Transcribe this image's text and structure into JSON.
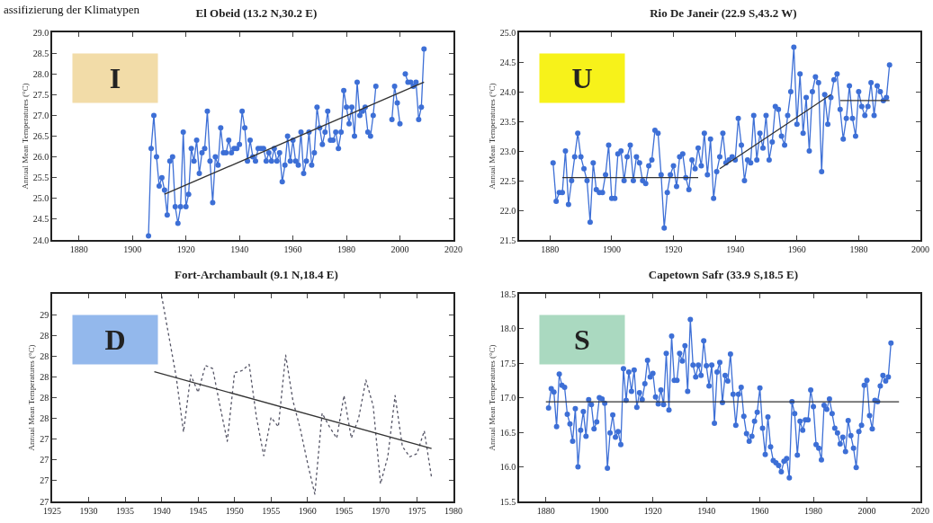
{
  "chart_data": [
    {
      "type": "line",
      "title": "El Obeid (13.2 N,30.2 E)",
      "ylabel": "Annual Mean Temperatures (°C)",
      "annotations": [
        "I",
        "assifizierung der Klimatypen"
      ],
      "marker": "circle",
      "line_style": "solid",
      "xlim": [
        1870,
        2020
      ],
      "xticks": [
        1880,
        1900,
        1920,
        1940,
        1960,
        1980,
        2000,
        2020
      ],
      "ylim": [
        24,
        29
      ],
      "yticks": [
        {
          "value": 24,
          "label": "24.0"
        },
        {
          "value": 24.5,
          "label": "24.5"
        },
        {
          "value": 25,
          "label": "25.0"
        },
        {
          "value": 25.5,
          "label": "25.5"
        },
        {
          "value": 26,
          "label": "26.0"
        },
        {
          "value": 26.5,
          "label": "26.5"
        },
        {
          "value": 27,
          "label": "27.0"
        },
        {
          "value": 27.5,
          "label": "27.5"
        },
        {
          "value": 28,
          "label": "28.0"
        },
        {
          "value": 28.5,
          "label": "28.5"
        },
        {
          "value": 29,
          "label": "29.0"
        }
      ],
      "series": [
        {
          "color": "#3d6fd6",
          "x": [
            1906,
            1907,
            1908,
            1909,
            1910,
            1911,
            1912,
            1913,
            1914,
            1915,
            1916,
            1917,
            1918,
            1919,
            1920,
            1921,
            1922,
            1923,
            1924,
            1925,
            1926,
            1927,
            1928,
            1929,
            1930,
            1931,
            1932,
            1933,
            1934,
            1935,
            1936,
            1937,
            1938,
            1939,
            1940,
            1941,
            1942,
            1943,
            1944,
            1945,
            1946,
            1947,
            1948,
            1949,
            1950,
            1951,
            1952,
            1953,
            1954,
            1955,
            1956,
            1957,
            1958,
            1959,
            1960,
            1961,
            1962,
            1963,
            1964,
            1965,
            1966,
            1967,
            1968,
            1969,
            1970,
            1971,
            1972,
            1973,
            1974,
            1975,
            1976,
            1977,
            1978,
            1979,
            1980,
            1981,
            1982,
            1983,
            1984,
            1985,
            1986,
            1987,
            1988,
            1989,
            1990,
            1991,
            1992,
            1993,
            1994,
            1995,
            1996,
            1997,
            1998,
            1999,
            2000,
            2001,
            2002,
            2003,
            2004,
            2005,
            2006,
            2007,
            2008,
            2009
          ],
          "values": [
            24.1,
            26.2,
            27.0,
            26.0,
            25.3,
            25.5,
            25.2,
            24.6,
            25.9,
            26.0,
            24.8,
            24.4,
            24.8,
            26.6,
            24.8,
            25.1,
            26.2,
            25.9,
            26.4,
            25.6,
            26.1,
            26.2,
            27.1,
            25.9,
            24.9,
            26.0,
            25.8,
            26.7,
            26.1,
            26.1,
            26.4,
            26.1,
            26.2,
            26.2,
            26.3,
            27.1,
            26.7,
            25.9,
            26.4,
            26.0,
            25.9,
            26.2,
            26.2,
            26.2,
            25.9,
            26.1,
            25.9,
            26.2,
            25.9,
            26.1,
            25.4,
            25.8,
            26.5,
            25.9,
            26.4,
            25.9,
            25.8,
            26.6,
            25.6,
            25.9,
            26.6,
            25.8,
            26.1,
            27.2,
            26.7,
            26.3,
            26.6,
            27.1,
            26.4,
            26.4,
            26.6,
            26.2,
            26.6,
            27.6,
            27.2,
            26.8,
            27.2,
            26.5,
            27.8,
            27.0,
            27.1,
            27.2,
            26.6,
            26.5,
            27.0,
            27.7,
            null,
            null,
            null,
            null,
            null,
            26.9,
            27.7,
            27.3,
            26.8,
            null,
            28.0,
            27.8,
            27.8,
            27.7,
            27.8,
            26.9,
            27.2,
            28.6
          ]
        },
        {
          "type": "line",
          "color": "#333333",
          "marker": "none",
          "x": [
            1912,
            2009
          ],
          "values": [
            25.1,
            27.8
          ]
        }
      ]
    },
    {
      "type": "line",
      "title": "Rio De Janeir (22.9 S,43.2 W)",
      "ylabel": "Annual Mean Temperatures (°C)",
      "annotations": [
        "U"
      ],
      "marker": "circle",
      "line_style": "solid",
      "xlim": [
        1870,
        2000
      ],
      "xticks": [
        1880,
        1900,
        1920,
        1940,
        1960,
        1980,
        2000
      ],
      "ylim": [
        21.5,
        25
      ],
      "yticks": [
        {
          "value": 21.5,
          "label": "21.5"
        },
        {
          "value": 22,
          "label": "22.0"
        },
        {
          "value": 22.5,
          "label": "22.5"
        },
        {
          "value": 23,
          "label": "23.0"
        },
        {
          "value": 23.5,
          "label": "23.5"
        },
        {
          "value": 24,
          "label": "24.0"
        },
        {
          "value": 24.5,
          "label": "24.5"
        },
        {
          "value": 25,
          "label": "25.0"
        }
      ],
      "series": [
        {
          "color": "#3d6fd6",
          "x": [
            1881,
            1882,
            1883,
            1884,
            1885,
            1886,
            1887,
            1888,
            1889,
            1890,
            1891,
            1892,
            1893,
            1894,
            1895,
            1896,
            1897,
            1898,
            1899,
            1900,
            1901,
            1902,
            1903,
            1904,
            1905,
            1906,
            1907,
            1908,
            1909,
            1910,
            1911,
            1912,
            1913,
            1914,
            1915,
            1916,
            1917,
            1918,
            1919,
            1920,
            1921,
            1922,
            1923,
            1924,
            1925,
            1926,
            1927,
            1928,
            1929,
            1930,
            1931,
            1932,
            1933,
            1934,
            1935,
            1936,
            1937,
            1938,
            1939,
            1940,
            1941,
            1942,
            1943,
            1944,
            1945,
            1946,
            1947,
            1948,
            1949,
            1950,
            1951,
            1952,
            1953,
            1954,
            1955,
            1956,
            1957,
            1958,
            1959,
            1960,
            1961,
            1962,
            1963,
            1964,
            1965,
            1966,
            1967,
            1968,
            1969,
            1970,
            1971,
            1972,
            1973,
            1974,
            1975,
            1976,
            1977,
            1978,
            1979,
            1980,
            1981,
            1982,
            1983,
            1984,
            1985,
            1986,
            1987,
            1988,
            1989,
            1990
          ],
          "values": [
            22.8,
            22.15,
            22.3,
            22.3,
            23.0,
            22.1,
            22.5,
            22.9,
            23.3,
            22.9,
            22.7,
            22.5,
            21.8,
            22.8,
            22.35,
            22.3,
            22.3,
            22.6,
            23.1,
            22.2,
            22.2,
            22.95,
            23.0,
            22.5,
            22.9,
            23.1,
            22.5,
            22.9,
            22.8,
            22.5,
            22.45,
            22.75,
            22.85,
            23.35,
            23.3,
            22.6,
            21.7,
            22.3,
            22.6,
            22.75,
            22.4,
            22.9,
            22.95,
            22.55,
            22.35,
            22.85,
            22.7,
            23.05,
            22.75,
            23.3,
            22.6,
            23.2,
            22.2,
            22.65,
            22.9,
            23.3,
            22.8,
            22.85,
            22.9,
            22.85,
            23.55,
            23.1,
            22.5,
            22.85,
            22.8,
            23.6,
            22.85,
            23.3,
            23.05,
            23.6,
            22.85,
            23.15,
            23.75,
            23.7,
            23.25,
            23.1,
            23.6,
            24.0,
            24.75,
            23.45,
            24.3,
            23.3,
            23.9,
            23.0,
            24.0,
            24.25,
            24.15,
            22.65,
            23.95,
            23.45,
            23.9,
            24.2,
            24.3,
            23.7,
            23.2,
            23.55,
            24.1,
            23.55,
            23.25,
            24.0,
            23.75,
            23.6,
            23.75,
            24.15,
            23.6,
            24.1,
            24.0,
            23.85,
            23.9,
            24.45
          ]
        },
        {
          "type": "line",
          "color": "#333333",
          "marker": "none",
          "x": [
            1884,
            1928
          ],
          "values": [
            22.55,
            22.55
          ]
        },
        {
          "type": "line",
          "color": "#333333",
          "marker": "none",
          "x": [
            1935,
            1971
          ],
          "values": [
            22.7,
            23.95
          ]
        },
        {
          "type": "line",
          "color": "#333333",
          "marker": "none",
          "x": [
            1974,
            1990
          ],
          "values": [
            23.85,
            23.85
          ]
        }
      ]
    },
    {
      "type": "line",
      "title": "Fort-Archambault (9.1 N,18.4 E)",
      "ylabel": "Annual Mean Temperatures (°C)",
      "annotations": [
        "D"
      ],
      "marker": "none",
      "xlim": [
        1925,
        1980
      ],
      "xticks": [
        1925,
        1930,
        1935,
        1940,
        1945,
        1950,
        1955,
        1960,
        1965,
        1970,
        1975,
        1980
      ],
      "ylim": [
        26.8,
        28.8
      ],
      "yticks": [
        {
          "value": 26.8,
          "label": "27"
        },
        {
          "value": 27.0,
          "label": "27"
        },
        {
          "value": 27.2,
          "label": "27"
        },
        {
          "value": 27.4,
          "label": "27"
        },
        {
          "value": 27.6,
          "label": "28"
        },
        {
          "value": 27.8,
          "label": "28"
        },
        {
          "value": 28.0,
          "label": "28"
        },
        {
          "value": 28.2,
          "label": "28"
        },
        {
          "value": 28.4,
          "label": "28"
        },
        {
          "value": 28.6,
          "label": "29"
        }
      ],
      "series": [
        {
          "color": "#555566",
          "line_style": "dotted",
          "x": [
            1940,
            1942,
            1943,
            1944,
            1945,
            1946,
            1947,
            1948,
            1949,
            1950,
            1951,
            1952,
            1953,
            1954,
            1955,
            1956,
            1957,
            1958,
            1959,
            1960,
            1961,
            1962,
            1963,
            1964,
            1965,
            1966,
            1967,
            1968,
            1969,
            1970,
            1971,
            1972,
            1973,
            1974,
            1975,
            1976,
            1977
          ],
          "values": [
            28.78,
            28.0,
            27.47,
            28.02,
            27.85,
            28.11,
            28.08,
            27.72,
            27.38,
            28.04,
            28.06,
            28.12,
            27.61,
            27.24,
            27.61,
            27.52,
            28.21,
            27.77,
            27.5,
            27.17,
            26.87,
            27.65,
            27.52,
            27.41,
            27.82,
            27.41,
            27.6,
            27.97,
            27.72,
            26.97,
            27.23,
            27.82,
            27.33,
            27.23,
            27.26,
            27.48,
            27.03
          ]
        },
        {
          "type": "line",
          "color": "#333333",
          "line_style": "solid",
          "x": [
            1939,
            1977
          ],
          "values": [
            28.05,
            27.31
          ]
        }
      ]
    },
    {
      "type": "line",
      "title": "Capetown Safr (33.9 S,18.5 E)",
      "ylabel": "Annual Mean Temperatures (°C)",
      "annotations": [
        "S"
      ],
      "marker": "circle",
      "line_style": "solid",
      "xlim": [
        1870,
        2020
      ],
      "xticks": [
        1880,
        1900,
        1920,
        1940,
        1960,
        1980,
        2000,
        2020
      ],
      "ylim": [
        15.5,
        18.5
      ],
      "yticks": [
        {
          "value": 15.5,
          "label": "15.5"
        },
        {
          "value": 16,
          "label": "16.0"
        },
        {
          "value": 16.5,
          "label": "16.5"
        },
        {
          "value": 17,
          "label": "17.0"
        },
        {
          "value": 17.5,
          "label": "17.5"
        },
        {
          "value": 18,
          "label": "18.0"
        },
        {
          "value": 18.5,
          "label": "18.5"
        }
      ],
      "series": [
        {
          "color": "#3d6fd6",
          "x": [
            1881,
            1882,
            1883,
            1884,
            1885,
            1886,
            1887,
            1888,
            1889,
            1890,
            1891,
            1892,
            1893,
            1894,
            1895,
            1896,
            1897,
            1898,
            1899,
            1900,
            1901,
            1902,
            1903,
            1904,
            1905,
            1906,
            1907,
            1908,
            1909,
            1910,
            1911,
            1912,
            1913,
            1914,
            1915,
            1916,
            1917,
            1918,
            1919,
            1920,
            1921,
            1922,
            1923,
            1924,
            1925,
            1926,
            1927,
            1928,
            1929,
            1930,
            1931,
            1932,
            1933,
            1934,
            1935,
            1936,
            1937,
            1938,
            1939,
            1940,
            1941,
            1942,
            1943,
            1944,
            1945,
            1946,
            1947,
            1948,
            1949,
            1950,
            1951,
            1952,
            1953,
            1954,
            1955,
            1956,
            1957,
            1958,
            1959,
            1960,
            1961,
            1962,
            1963,
            1964,
            1965,
            1966,
            1967,
            1968,
            1969,
            1970,
            1971,
            1972,
            1973,
            1974,
            1975,
            1976,
            1977,
            1978,
            1979,
            1980,
            1981,
            1982,
            1983,
            1984,
            1985,
            1986,
            1987,
            1988,
            1989,
            1990,
            1991,
            1992,
            1993,
            1994,
            1995,
            1996,
            1997,
            1998,
            1999,
            2000,
            2001,
            2002,
            2003,
            2004,
            2005,
            2006,
            2007,
            2008,
            2009
          ],
          "values": [
            16.85,
            17.13,
            17.08,
            16.58,
            17.34,
            17.18,
            17.15,
            16.76,
            16.62,
            16.37,
            16.84,
            16.0,
            16.53,
            16.8,
            16.44,
            16.97,
            16.9,
            16.55,
            16.65,
            17.0,
            16.98,
            16.92,
            15.98,
            16.49,
            16.75,
            16.43,
            16.51,
            16.32,
            17.42,
            16.96,
            17.37,
            17.09,
            17.4,
            16.86,
            17.07,
            16.97,
            17.2,
            17.54,
            17.3,
            17.35,
            17.01,
            16.91,
            17.11,
            16.9,
            17.64,
            16.82,
            17.89,
            17.25,
            17.25,
            17.64,
            17.53,
            17.75,
            17.09,
            18.13,
            17.47,
            17.3,
            17.47,
            17.32,
            17.82,
            17.46,
            17.17,
            17.47,
            16.63,
            17.37,
            17.51,
            16.93,
            17.32,
            17.24,
            17.63,
            17.05,
            16.6,
            17.05,
            17.15,
            16.73,
            16.48,
            16.37,
            16.44,
            16.66,
            16.79,
            17.14,
            16.56,
            16.18,
            16.72,
            16.29,
            16.09,
            16.06,
            16.02,
            15.93,
            16.08,
            16.12,
            15.84,
            16.94,
            16.77,
            16.17,
            16.66,
            16.53,
            16.68,
            16.68,
            17.11,
            16.87,
            16.32,
            16.27,
            16.1,
            16.89,
            16.83,
            16.98,
            16.77,
            16.56,
            16.49,
            16.33,
            16.43,
            16.22,
            16.67,
            16.45,
            16.27,
            15.99,
            16.51,
            16.6,
            17.18,
            17.25,
            16.74,
            16.55,
            16.96,
            16.94,
            17.17,
            17.32,
            17.24,
            17.3,
            17.79
          ]
        },
        {
          "type": "line",
          "color": "#333333",
          "marker": "none",
          "x": [
            1880,
            2012
          ],
          "values": [
            16.94,
            16.94
          ]
        }
      ]
    }
  ]
}
